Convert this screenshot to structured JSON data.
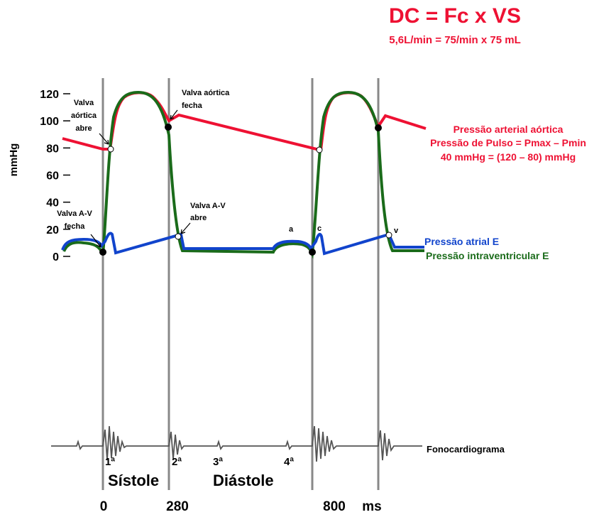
{
  "title": "DC = Fc x VS",
  "subtitle": "5,6L/min = 75/min x 75 mL",
  "y_axis": {
    "label": "mmHg",
    "ticks": [
      "120",
      "100",
      "80",
      "60",
      "40",
      "20",
      "0"
    ]
  },
  "annotations": {
    "aortic_open": [
      "Valva",
      "aórtica",
      "abre"
    ],
    "aortic_close": [
      "Valva aórtica",
      "fecha"
    ],
    "av_close": [
      "Valva A-V",
      "fecha"
    ],
    "av_open": [
      "Valva A-V",
      "abre"
    ],
    "wave_a": "a",
    "wave_c": "c",
    "wave_v": "v"
  },
  "legend": {
    "aortic": [
      "Pressão arterial aórtica",
      "Pressão de Pulso = Pmax – Pmin",
      "40 mmHg = (120 – 80) mmHg"
    ],
    "atrial": "Pressão atrial E",
    "ventricular": "Pressão intraventricular E",
    "phono": "Fonocardiograma"
  },
  "sounds": [
    "1ª",
    "2ª",
    "3ª",
    "4ª"
  ],
  "phases": [
    "Sístole",
    "Diástole"
  ],
  "time_labels": [
    "0",
    "280",
    "800",
    "ms"
  ]
}
